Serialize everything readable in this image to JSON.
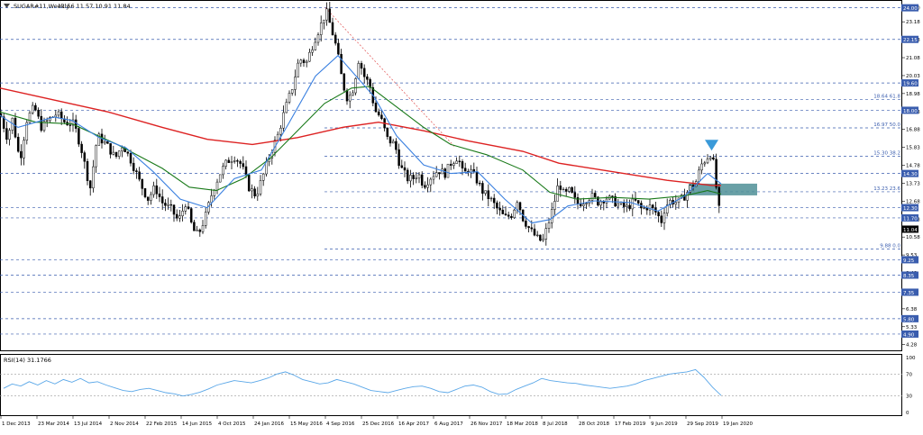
{
  "header": {
    "symbol_label": "SUGAR#11,Weekly",
    "ohlc_label": "11.56 11.57 10.91 11.84"
  },
  "rsi_label": "RSI(14) 31.1766",
  "colors": {
    "ma_red": "#dd2222",
    "ma_green": "#1a7a1a",
    "ma_blue": "#3a80e0",
    "hline": "#3a5dae",
    "trend": "#e05050",
    "zone": "#4f8f96",
    "triangle": "#3a9ad9",
    "rsi": "#5aa7e8",
    "candle": "#000000",
    "price_tag_bg": "#3a5dae",
    "current_bg": "#000000"
  },
  "chart_data": [
    {
      "type": "candlestick",
      "title": "SUGAR#11,Weekly",
      "y_axis_ticks": [
        "24.00",
        "23.18",
        "22.13",
        "21.08",
        "20.03",
        "18.98",
        "17.93",
        "16.88",
        "15.83",
        "14.78",
        "13.73",
        "12.68",
        "11.63",
        "10.58",
        "9.53",
        "8.48",
        "7.43",
        "6.38",
        "5.33",
        "4.28"
      ],
      "x_axis_labels": [
        "1 Dec 2013",
        "23 Mar 2014",
        "13 Jul 2014",
        "2 Nov 2014",
        "22 Feb 2015",
        "14 Jun 2015",
        "4 Oct 2015",
        "24 Jan 2016",
        "15 May 2016",
        "4 Sep 2016",
        "25 Dec 2016",
        "16 Apr 2017",
        "6 Aug 2017",
        "26 Nov 2017",
        "18 Mar 2018",
        "8 Jul 2018",
        "28 Oct 2018",
        "17 Feb 2019",
        "9 Jun 2019",
        "29 Sep 2019",
        "19 Jan 2020"
      ],
      "ylim": [
        4.0,
        24.35
      ],
      "horizontal_levels": [
        {
          "value": 24.0,
          "tag": "24.00",
          "label": ""
        },
        {
          "value": 22.15,
          "tag": "22.15",
          "label": ""
        },
        {
          "value": 19.6,
          "tag": "19.60",
          "label": ""
        },
        {
          "value": 18.64,
          "tag": "",
          "label": "18.64 61.8"
        },
        {
          "value": 18.0,
          "tag": "18.00",
          "label": ""
        },
        {
          "value": 16.97,
          "tag": "",
          "label": "16.97 50.0"
        },
        {
          "value": 15.3,
          "tag": "",
          "label": "15.30 38.2"
        },
        {
          "value": 14.3,
          "tag": "14.30",
          "label": ""
        },
        {
          "value": 13.23,
          "tag": "",
          "label": "13.23 23.6"
        },
        {
          "value": 12.3,
          "tag": "12.30",
          "label": ""
        },
        {
          "value": 11.7,
          "tag": "11.70",
          "label": ""
        },
        {
          "value": 9.88,
          "tag": "",
          "label": "9.88 0.0"
        },
        {
          "value": 9.25,
          "tag": "9.25",
          "label": ""
        },
        {
          "value": 8.35,
          "tag": "8.35",
          "label": ""
        },
        {
          "value": 7.35,
          "tag": "7.35",
          "label": ""
        },
        {
          "value": 5.8,
          "tag": "5.80",
          "label": ""
        },
        {
          "value": 4.9,
          "tag": "4.90",
          "label": ""
        }
      ],
      "current_price": {
        "value": 11.04,
        "tag": "11.04"
      },
      "zone": {
        "from": 13.23,
        "to": 13.6
      },
      "trendline": {
        "from": 24.0,
        "to": 15.83
      },
      "signal_marker": {
        "type": "down-triangle",
        "value": 15.9
      },
      "price_points": [
        [
          0,
          17.8
        ],
        [
          8,
          16.4
        ],
        [
          14,
          17.5
        ],
        [
          22,
          15.0
        ],
        [
          30,
          17.5
        ],
        [
          38,
          18.2
        ],
        [
          46,
          17.0
        ],
        [
          55,
          17.5
        ],
        [
          63,
          17.8
        ],
        [
          72,
          17.3
        ],
        [
          82,
          17.2
        ],
        [
          90,
          15.8
        ],
        [
          100,
          13.4
        ],
        [
          108,
          16.5
        ],
        [
          118,
          16.0
        ],
        [
          128,
          15.2
        ],
        [
          136,
          16.0
        ],
        [
          146,
          15.0
        ],
        [
          155,
          13.8
        ],
        [
          164,
          12.8
        ],
        [
          172,
          13.5
        ],
        [
          180,
          12.6
        ],
        [
          190,
          12.2
        ],
        [
          198,
          11.5
        ],
        [
          206,
          12.6
        ],
        [
          214,
          11.0
        ],
        [
          220,
          10.7
        ],
        [
          228,
          11.8
        ],
        [
          236,
          13.3
        ],
        [
          244,
          14.3
        ],
        [
          252,
          15.0
        ],
        [
          260,
          15.3
        ],
        [
          268,
          14.8
        ],
        [
          276,
          13.5
        ],
        [
          284,
          13.0
        ],
        [
          292,
          14.2
        ],
        [
          300,
          15.5
        ],
        [
          308,
          16.5
        ],
        [
          316,
          18.0
        ],
        [
          324,
          19.3
        ],
        [
          332,
          21.0
        ],
        [
          340,
          20.8
        ],
        [
          348,
          22.0
        ],
        [
          356,
          23.0
        ],
        [
          362,
          23.8
        ],
        [
          368,
          22.7
        ],
        [
          374,
          21.5
        ],
        [
          380,
          19.6
        ],
        [
          386,
          18.6
        ],
        [
          392,
          19.3
        ],
        [
          398,
          21.0
        ],
        [
          404,
          20.0
        ],
        [
          410,
          19.5
        ],
        [
          416,
          18.0
        ],
        [
          422,
          17.6
        ],
        [
          430,
          16.3
        ],
        [
          438,
          16.0
        ],
        [
          444,
          14.7
        ],
        [
          452,
          14.0
        ],
        [
          458,
          14.0
        ],
        [
          464,
          14.3
        ],
        [
          470,
          13.6
        ],
        [
          478,
          14.1
        ],
        [
          486,
          14.5
        ],
        [
          494,
          14.3
        ],
        [
          500,
          14.9
        ],
        [
          508,
          15.3
        ],
        [
          514,
          14.2
        ],
        [
          520,
          14.6
        ],
        [
          528,
          14.0
        ],
        [
          536,
          13.2
        ],
        [
          544,
          12.8
        ],
        [
          552,
          12.2
        ],
        [
          560,
          11.7
        ],
        [
          568,
          11.9
        ],
        [
          574,
          12.8
        ],
        [
          580,
          11.7
        ],
        [
          588,
          11.0
        ],
        [
          596,
          10.5
        ],
        [
          602,
          10.3
        ],
        [
          608,
          11.3
        ],
        [
          614,
          12.4
        ],
        [
          620,
          13.8
        ],
        [
          626,
          13.0
        ],
        [
          632,
          13.3
        ],
        [
          640,
          12.5
        ],
        [
          648,
          12.7
        ],
        [
          656,
          13.0
        ],
        [
          664,
          12.6
        ],
        [
          672,
          12.9
        ],
        [
          680,
          12.7
        ],
        [
          688,
          12.4
        ],
        [
          696,
          12.3
        ],
        [
          704,
          12.7
        ],
        [
          712,
          12.2
        ],
        [
          720,
          12.4
        ],
        [
          728,
          12.0
        ],
        [
          734,
          11.5
        ],
        [
          738,
          12.4
        ],
        [
          744,
          12.7
        ],
        [
          752,
          12.6
        ],
        [
          760,
          13.0
        ],
        [
          766,
          13.5
        ],
        [
          772,
          13.8
        ],
        [
          778,
          14.8
        ],
        [
          784,
          15.2
        ],
        [
          788,
          15.5
        ],
        [
          792,
          14.8
        ],
        [
          795,
          13.3
        ],
        [
          798,
          12.1
        ],
        [
          800,
          11.2
        ]
      ],
      "moving_averages": {
        "red": [
          [
            0,
            19.3
          ],
          [
            60,
            18.6
          ],
          [
            120,
            17.9
          ],
          [
            180,
            17.0
          ],
          [
            230,
            16.3
          ],
          [
            280,
            16.0
          ],
          [
            330,
            16.4
          ],
          [
            380,
            17.0
          ],
          [
            420,
            17.3
          ],
          [
            470,
            16.8
          ],
          [
            520,
            16.2
          ],
          [
            580,
            15.6
          ],
          [
            620,
            14.9
          ],
          [
            680,
            14.4
          ],
          [
            740,
            13.9
          ],
          [
            790,
            13.6
          ],
          [
            800,
            13.6
          ]
        ],
        "green": [
          [
            0,
            17.9
          ],
          [
            40,
            17.3
          ],
          [
            80,
            17.2
          ],
          [
            130,
            16.0
          ],
          [
            180,
            14.6
          ],
          [
            210,
            13.5
          ],
          [
            240,
            13.3
          ],
          [
            270,
            14.0
          ],
          [
            300,
            15.2
          ],
          [
            330,
            16.8
          ],
          [
            360,
            18.4
          ],
          [
            390,
            19.3
          ],
          [
            410,
            19.4
          ],
          [
            440,
            18.2
          ],
          [
            470,
            17.0
          ],
          [
            500,
            16.0
          ],
          [
            540,
            15.4
          ],
          [
            580,
            14.5
          ],
          [
            610,
            13.2
          ],
          [
            640,
            12.8
          ],
          [
            680,
            12.9
          ],
          [
            720,
            12.8
          ],
          [
            760,
            13.0
          ],
          [
            785,
            13.3
          ],
          [
            800,
            13.1
          ]
        ],
        "blue": [
          [
            0,
            17.7
          ],
          [
            20,
            17.0
          ],
          [
            40,
            17.3
          ],
          [
            60,
            17.6
          ],
          [
            80,
            17.4
          ],
          [
            110,
            16.4
          ],
          [
            140,
            15.8
          ],
          [
            170,
            14.4
          ],
          [
            200,
            12.8
          ],
          [
            230,
            12.3
          ],
          [
            260,
            14.0
          ],
          [
            290,
            14.5
          ],
          [
            320,
            17.2
          ],
          [
            350,
            20.0
          ],
          [
            375,
            21.2
          ],
          [
            395,
            20.0
          ],
          [
            415,
            18.8
          ],
          [
            440,
            16.5
          ],
          [
            470,
            14.8
          ],
          [
            500,
            14.3
          ],
          [
            530,
            14.4
          ],
          [
            560,
            12.8
          ],
          [
            590,
            11.4
          ],
          [
            610,
            11.6
          ],
          [
            630,
            12.4
          ],
          [
            660,
            12.7
          ],
          [
            700,
            12.6
          ],
          [
            730,
            12.1
          ],
          [
            760,
            13.0
          ],
          [
            785,
            14.3
          ],
          [
            800,
            13.7
          ]
        ]
      }
    },
    {
      "type": "line",
      "title": "RSI(14) 31.1766",
      "y_axis_ticks": [
        "100",
        "70",
        "30",
        "0"
      ],
      "ylim": [
        0,
        100
      ],
      "values": [
        44,
        52,
        48,
        56,
        50,
        58,
        52,
        60,
        55,
        62,
        54,
        56,
        50,
        45,
        40,
        38,
        42,
        44,
        40,
        36,
        34,
        30,
        33,
        37,
        43,
        50,
        54,
        58,
        56,
        54,
        58,
        63,
        70,
        74,
        68,
        60,
        56,
        52,
        54,
        60,
        56,
        52,
        46,
        40,
        38,
        36,
        40,
        44,
        47,
        48,
        44,
        38,
        36,
        42,
        48,
        50,
        46,
        38,
        33,
        34,
        42,
        48,
        54,
        62,
        58,
        56,
        54,
        53,
        50,
        48,
        46,
        44,
        46,
        48,
        52,
        58,
        62,
        66,
        70,
        72,
        74,
        78,
        64,
        46,
        31
      ]
    }
  ]
}
